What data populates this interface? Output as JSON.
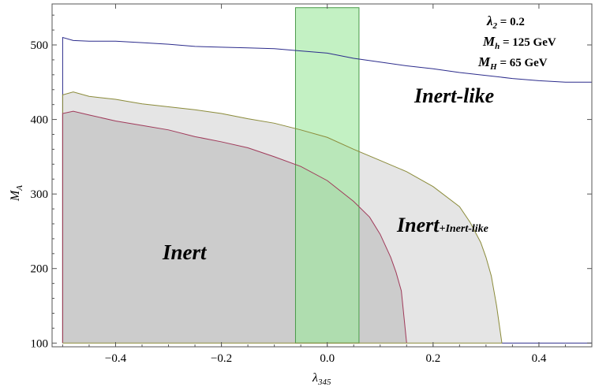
{
  "chart_data": {
    "type": "area",
    "title": "",
    "xlabel": "λ",
    "xlabel_sub": "345",
    "ylabel": "M",
    "ylabel_sub": "A",
    "xlim": [
      -0.52,
      0.5
    ],
    "ylim": [
      95,
      555
    ],
    "xticks": [
      -0.4,
      -0.2,
      0.0,
      0.2,
      0.4
    ],
    "xtick_labels": [
      "−0.4",
      "−0.2",
      "0.0",
      "0.2",
      "0.4"
    ],
    "yticks": [
      100,
      200,
      300,
      400,
      500
    ],
    "ytick_labels": [
      "100",
      "200",
      "300",
      "400",
      "500"
    ],
    "grid": false,
    "series": [
      {
        "name": "Inert-like",
        "color": "#2c2c8c",
        "fill": "none",
        "x": [
          -0.5,
          -0.48,
          -0.45,
          -0.4,
          -0.35,
          -0.3,
          -0.25,
          -0.2,
          -0.15,
          -0.1,
          -0.05,
          0.0,
          0.05,
          0.1,
          0.15,
          0.2,
          0.25,
          0.3,
          0.35,
          0.4,
          0.45,
          0.5
        ],
        "y": [
          510,
          506,
          505,
          505,
          503,
          501,
          498,
          497,
          496,
          495,
          492,
          489,
          482,
          477,
          472,
          468,
          463,
          459,
          455,
          452,
          450,
          450
        ]
      },
      {
        "name": "Inert+Inert-like",
        "color": "#8b8b3a",
        "fill": "#e5e5e5",
        "x": [
          -0.5,
          -0.48,
          -0.45,
          -0.4,
          -0.35,
          -0.3,
          -0.25,
          -0.2,
          -0.15,
          -0.1,
          -0.05,
          0.0,
          0.05,
          0.1,
          0.15,
          0.2,
          0.25,
          0.27,
          0.29,
          0.3,
          0.31,
          0.315,
          0.32,
          0.325,
          0.33
        ],
        "y": [
          433,
          437,
          431,
          427,
          421,
          417,
          413,
          408,
          401,
          395,
          386,
          376,
          360,
          345,
          330,
          310,
          283,
          262,
          235,
          215,
          190,
          170,
          150,
          125,
          100
        ]
      },
      {
        "name": "Inert",
        "color": "#a03a5a",
        "fill": "#cccccc",
        "x": [
          -0.5,
          -0.48,
          -0.45,
          -0.4,
          -0.35,
          -0.3,
          -0.25,
          -0.2,
          -0.15,
          -0.1,
          -0.05,
          0.0,
          0.05,
          0.08,
          0.1,
          0.12,
          0.13,
          0.14,
          0.145,
          0.15
        ],
        "y": [
          408,
          411,
          406,
          398,
          392,
          386,
          377,
          370,
          362,
          350,
          337,
          318,
          290,
          269,
          246,
          215,
          195,
          170,
          135,
          100
        ]
      }
    ],
    "band": {
      "x0": -0.06,
      "x1": 0.06,
      "y0": 100,
      "y1": 550,
      "color": "#9be89b"
    },
    "annotations": [
      {
        "text": "Inert-like",
        "x": 0.275,
        "y": 415
      },
      {
        "text": "Inert",
        "x": 0.195,
        "y": 237
      },
      {
        "text": "Inert",
        "sub": "+Inert-like",
        "x": 0.185,
        "y": 248
      },
      {
        "text": "Inert",
        "x": -0.305,
        "y": 218
      }
    ],
    "params": [
      {
        "sym": "λ",
        "sub": "2",
        "rest": " = 0.2"
      },
      {
        "sym": "M",
        "sub": "h",
        "rest": " = 125 GeV"
      },
      {
        "sym": "M",
        "sub": "H",
        "rest": " = 65 GeV"
      }
    ]
  }
}
